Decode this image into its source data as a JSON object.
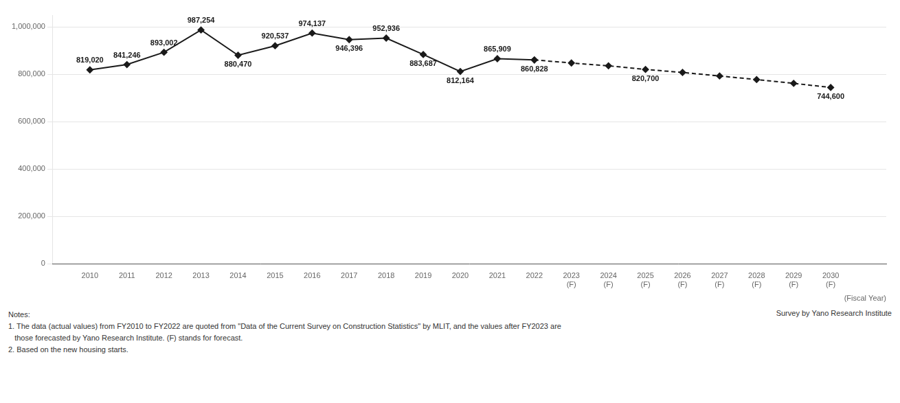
{
  "chart_data": {
    "type": "line",
    "xlabel": "(Fiscal Year)",
    "series": [
      {
        "color": "#1a1a1a",
        "marker": "diamond",
        "line_style": "solid",
        "x": [
          2010,
          2011,
          2012,
          2013,
          2014,
          2015,
          2016,
          2017,
          2018,
          2019,
          2020,
          2021,
          2022
        ],
        "values": [
          819020,
          841246,
          893002,
          987254,
          880470,
          920537,
          974137,
          946396,
          952936,
          883687,
          812164,
          865909,
          860828
        ],
        "value_labels": [
          "819,020",
          "841,246",
          "893,002",
          "987,254",
          "880,470",
          "920,537",
          "974,137",
          "946,396",
          "952,936",
          "883,687",
          "812,164",
          "865,909",
          "860,828"
        ]
      },
      {
        "color": "#1a1a1a",
        "marker": "diamond",
        "line_style": "dashed",
        "x": [
          2022,
          2023,
          2024,
          2025,
          2026,
          2027,
          2028,
          2029,
          2030
        ],
        "values": [
          860828,
          848000,
          836000,
          820700,
          808000,
          793000,
          778000,
          762000,
          744600
        ],
        "value_labels": [
          null,
          null,
          null,
          "820,700",
          null,
          null,
          null,
          null,
          "744,600"
        ]
      }
    ],
    "xlim": [
      2009.0,
      2031.5
    ],
    "xticks": [
      2010,
      2011,
      2012,
      2013,
      2014,
      2015,
      2016,
      2017,
      2018,
      2019,
      2020,
      2021,
      2022,
      {
        "value": 2023,
        "label": "2023\n(F)"
      },
      {
        "value": 2024,
        "label": "2024\n(F)"
      },
      {
        "value": 2025,
        "label": "2025\n(F)"
      },
      {
        "value": 2026,
        "label": "2026\n(F)"
      },
      {
        "value": 2027,
        "label": "2027\n(F)"
      },
      {
        "value": 2028,
        "label": "2028\n(F)"
      },
      {
        "value": 2029,
        "label": "2029\n(F)"
      },
      {
        "value": 2030,
        "label": "2030\n(F)"
      }
    ],
    "ylim": [
      0,
      1050000
    ],
    "yticks": [
      0,
      {
        "value": 200000,
        "label": "200,000"
      },
      {
        "value": 400000,
        "label": "400,000"
      },
      {
        "value": 600000,
        "label": "600,000"
      },
      {
        "value": 800000,
        "label": "800,000"
      },
      {
        "value": 1000000,
        "label": "1,000,000"
      }
    ],
    "grid": "y",
    "data_labels": true,
    "annotations": [
      "Notes:",
      "1. The data (actual values) from FY2010 to FY2022 are quoted from \"Data of the Current Survey on Construction Statistics\" by MLIT, and the values after FY2023 are",
      "   those forecasted by Yano Research Institute. (F) stands for forecast.",
      "2. Based on the new housing starts."
    ],
    "source": "Survey by Yano Research Institute"
  }
}
